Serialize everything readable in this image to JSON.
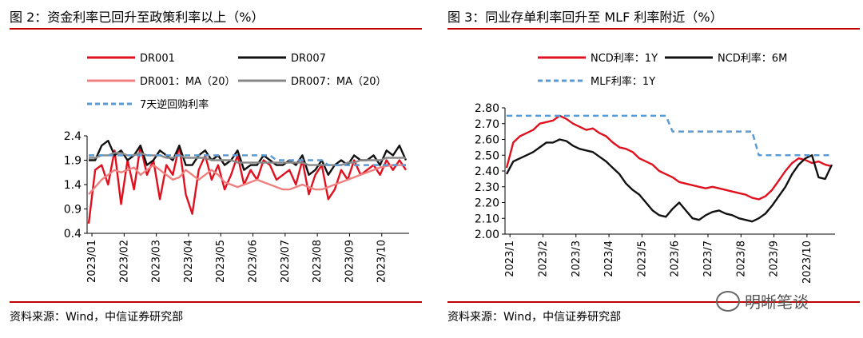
{
  "chart_data": [
    {
      "type": "line",
      "title": "图 2：资金利率已回升至政策利率以上（%）",
      "source": "资料来源：Wind，中信证券研究部",
      "ylim": [
        0.4,
        2.4
      ],
      "yticks": [
        "2.4",
        "1.9",
        "1.4",
        "0.9",
        "0.4"
      ],
      "xticks": [
        "2023/01",
        "2023/02",
        "2023/03",
        "2023/04",
        "2023/05",
        "2023/06",
        "2023/07",
        "2023/08",
        "2023/09",
        "2023/10"
      ],
      "legend_placement": "top",
      "series": [
        {
          "name": "DR001",
          "color": "#e0101e",
          "values": [
            0.6,
            1.7,
            1.8,
            1.4,
            2.1,
            1.0,
            1.9,
            1.3,
            2.2,
            1.6,
            1.9,
            1.1,
            1.8,
            1.6,
            2.2,
            1.2,
            0.8,
            1.7,
            2.0,
            1.5,
            1.8,
            1.3,
            1.6,
            2.0,
            1.4,
            1.7,
            1.5,
            1.9,
            1.8,
            1.5,
            1.6,
            1.7,
            1.4,
            1.9,
            1.2,
            1.6,
            1.8,
            1.1,
            1.3,
            1.7,
            1.5,
            1.9,
            1.6,
            1.7,
            1.8,
            1.6,
            1.9,
            1.7,
            1.9,
            1.7
          ]
        },
        {
          "name": "DR007",
          "color": "#111111",
          "values": [
            1.9,
            1.9,
            2.2,
            2.3,
            2.0,
            2.1,
            1.9,
            2.0,
            2.2,
            1.8,
            1.9,
            2.1,
            2.0,
            1.9,
            2.2,
            1.8,
            1.8,
            2.0,
            2.1,
            1.9,
            2.0,
            1.8,
            1.9,
            2.1,
            1.7,
            1.8,
            1.8,
            2.0,
            1.9,
            1.8,
            1.8,
            1.9,
            1.8,
            2.0,
            1.6,
            1.7,
            1.9,
            1.6,
            1.8,
            1.9,
            1.8,
            2.0,
            1.9,
            1.9,
            2.0,
            1.8,
            2.1,
            2.0,
            2.2,
            1.9
          ]
        },
        {
          "name": "DR001：MA（20）",
          "color": "#f08080",
          "values": [
            1.2,
            1.35,
            1.5,
            1.6,
            1.7,
            1.65,
            1.7,
            1.75,
            1.6,
            1.7,
            1.8,
            1.7,
            1.6,
            1.5,
            1.55,
            1.7,
            1.6,
            1.5,
            1.6,
            1.7,
            1.6,
            1.45,
            1.4,
            1.35,
            1.4,
            1.45,
            1.5,
            1.45,
            1.4,
            1.35,
            1.3,
            1.3,
            1.35,
            1.4,
            1.35,
            1.3,
            1.3,
            1.35,
            1.4,
            1.45,
            1.5,
            1.55,
            1.6,
            1.65,
            1.7,
            1.75,
            1.78,
            1.8,
            1.8,
            1.8
          ]
        },
        {
          "name": "DR007：MA（20）",
          "color": "#888888",
          "values": [
            1.95,
            1.95,
            2.0,
            2.0,
            2.05,
            2.05,
            2.0,
            2.0,
            2.05,
            2.0,
            2.0,
            2.0,
            1.95,
            1.95,
            2.0,
            1.95,
            1.95,
            1.95,
            1.95,
            1.9,
            1.9,
            1.9,
            1.9,
            1.85,
            1.85,
            1.85,
            1.85,
            1.85,
            1.85,
            1.85,
            1.85,
            1.85,
            1.85,
            1.85,
            1.8,
            1.8,
            1.8,
            1.8,
            1.8,
            1.8,
            1.85,
            1.85,
            1.9,
            1.9,
            1.9,
            1.9,
            1.95,
            1.95,
            1.95,
            1.95
          ]
        },
        {
          "name": "7天逆回购利率",
          "color": "#5b9bd5",
          "dashed": true,
          "values": [
            2.0,
            2.0,
            2.0,
            2.0,
            2.0,
            2.0,
            2.0,
            2.0,
            2.0,
            2.0,
            2.0,
            2.0,
            2.0,
            2.0,
            2.0,
            2.0,
            2.0,
            2.0,
            2.0,
            2.0,
            2.0,
            2.0,
            2.0,
            2.0,
            2.0,
            2.0,
            2.0,
            2.0,
            2.0,
            1.9,
            1.9,
            1.9,
            1.9,
            1.9,
            1.9,
            1.9,
            1.9,
            1.8,
            1.8,
            1.8,
            1.8,
            1.8,
            1.8,
            1.8,
            1.8,
            1.8,
            1.8,
            1.8,
            1.8,
            1.8
          ]
        }
      ]
    },
    {
      "type": "line",
      "title": "图 3：同业存单利率回升至 MLF 利率附近（%）",
      "source": "资料来源：Wind，中信证券研究部",
      "ylim": [
        2.0,
        2.8
      ],
      "yticks": [
        "2.80",
        "2.70",
        "2.60",
        "2.50",
        "2.40",
        "2.30",
        "2.20",
        "2.10",
        "2.00"
      ],
      "xticks": [
        "2023/1",
        "2023/2",
        "2023/3",
        "2023/4",
        "2023/5",
        "2023/6",
        "2023/7",
        "2023/8",
        "2023/9",
        "2023/10"
      ],
      "legend_placement": "top",
      "series": [
        {
          "name": "NCD利率：1Y",
          "color": "#e0101e",
          "values": [
            2.42,
            2.58,
            2.62,
            2.64,
            2.66,
            2.7,
            2.71,
            2.72,
            2.75,
            2.73,
            2.7,
            2.68,
            2.66,
            2.67,
            2.64,
            2.62,
            2.58,
            2.55,
            2.54,
            2.52,
            2.48,
            2.46,
            2.44,
            2.4,
            2.38,
            2.36,
            2.33,
            2.32,
            2.31,
            2.3,
            2.29,
            2.3,
            2.29,
            2.28,
            2.27,
            2.26,
            2.25,
            2.23,
            2.22,
            2.24,
            2.28,
            2.34,
            2.4,
            2.45,
            2.48,
            2.47,
            2.45,
            2.46,
            2.44,
            2.43
          ]
        },
        {
          "name": "NCD利率：6M",
          "color": "#111111",
          "values": [
            2.38,
            2.46,
            2.48,
            2.5,
            2.52,
            2.55,
            2.58,
            2.58,
            2.6,
            2.59,
            2.56,
            2.54,
            2.53,
            2.52,
            2.49,
            2.46,
            2.42,
            2.38,
            2.32,
            2.28,
            2.25,
            2.2,
            2.15,
            2.12,
            2.11,
            2.16,
            2.2,
            2.15,
            2.1,
            2.09,
            2.12,
            2.14,
            2.15,
            2.13,
            2.12,
            2.1,
            2.09,
            2.08,
            2.1,
            2.13,
            2.18,
            2.24,
            2.3,
            2.38,
            2.44,
            2.48,
            2.5,
            2.36,
            2.35,
            2.44
          ]
        },
        {
          "name": "MLF利率：1Y",
          "color": "#5b9bd5",
          "dashed": true,
          "values": [
            2.75,
            2.75,
            2.75,
            2.75,
            2.75,
            2.75,
            2.75,
            2.75,
            2.75,
            2.75,
            2.75,
            2.75,
            2.75,
            2.75,
            2.75,
            2.75,
            2.75,
            2.75,
            2.75,
            2.75,
            2.75,
            2.75,
            2.75,
            2.75,
            2.75,
            2.65,
            2.65,
            2.65,
            2.65,
            2.65,
            2.65,
            2.65,
            2.65,
            2.65,
            2.65,
            2.65,
            2.65,
            2.65,
            2.5,
            2.5,
            2.5,
            2.5,
            2.5,
            2.5,
            2.5,
            2.5,
            2.5,
            2.5,
            2.5,
            2.5
          ]
        }
      ]
    }
  ],
  "watermark": "明晰笔谈"
}
